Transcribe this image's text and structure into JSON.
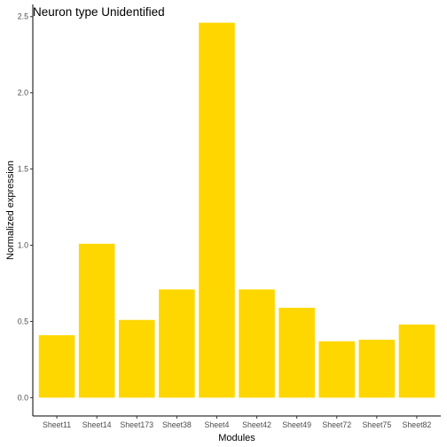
{
  "chart_data": {
    "type": "bar",
    "title": "Neuron type Unidentified",
    "xlabel": "Modules",
    "ylabel": "Normalized expression",
    "categories": [
      "Sheet11",
      "Sheet14",
      "Sheet173",
      "Sheet38",
      "Sheet4",
      "Sheet42",
      "Sheet49",
      "Sheet72",
      "Sheet75",
      "Sheet82"
    ],
    "values": [
      0.41,
      1.01,
      0.51,
      0.71,
      2.46,
      0.71,
      0.59,
      0.37,
      0.38,
      0.48
    ],
    "ylim": [
      -0.12,
      2.58
    ],
    "yticks": [
      "0.0",
      "0.5",
      "1.0",
      "1.5",
      "2.0",
      "2.5"
    ],
    "bar_color": "#FFD700",
    "grid": false,
    "legend": "none"
  }
}
